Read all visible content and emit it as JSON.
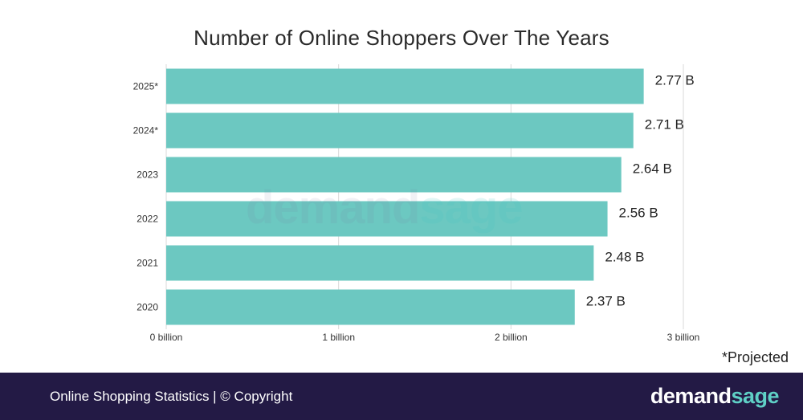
{
  "colors": {
    "bar": "#6cc8c1",
    "grid": "#d9d9d9",
    "footer_bg": "#231a45",
    "brand_accent": "#5fd0c6"
  },
  "chart_data": {
    "type": "bar",
    "orientation": "horizontal",
    "title": "Number of Online Shoppers Over The Years",
    "categories": [
      "2025*",
      "2024*",
      "2023",
      "2022",
      "2021",
      "2020"
    ],
    "values": [
      2.77,
      2.71,
      2.64,
      2.56,
      2.48,
      2.37
    ],
    "value_labels": [
      "2.77 B",
      "2.71 B",
      "2.64 B",
      "2.56 B",
      "2.48 B",
      "2.37 B"
    ],
    "xlim": [
      0,
      3
    ],
    "x_ticks": [
      0,
      1,
      2,
      3
    ],
    "x_tick_labels": [
      "0 billion",
      "1 billion",
      "2 billion",
      "3 billion"
    ],
    "grid": "vertical",
    "xlabel": "",
    "ylabel": ""
  },
  "watermark": {
    "main": "demand",
    "accent": "sage"
  },
  "footnote": "*Projected",
  "footer": {
    "text": "Online Shopping Statistics | © Copyright",
    "logo_main": "demand",
    "logo_accent": "sage"
  }
}
